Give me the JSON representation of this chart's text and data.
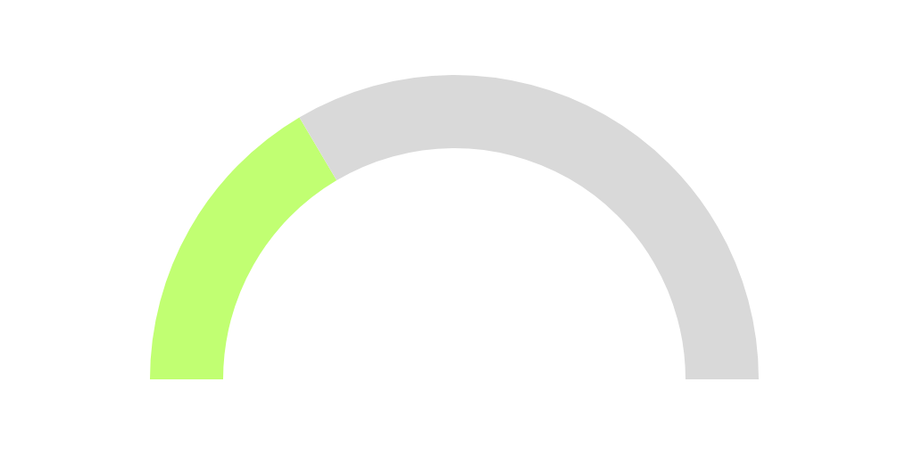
{
  "chart_data": {
    "type": "donut",
    "categories": [
      null,
      null
    ],
    "values": [
      33,
      67
    ],
    "colors": [
      "#c1ff72",
      "#d9d9d9"
    ]
  }
}
